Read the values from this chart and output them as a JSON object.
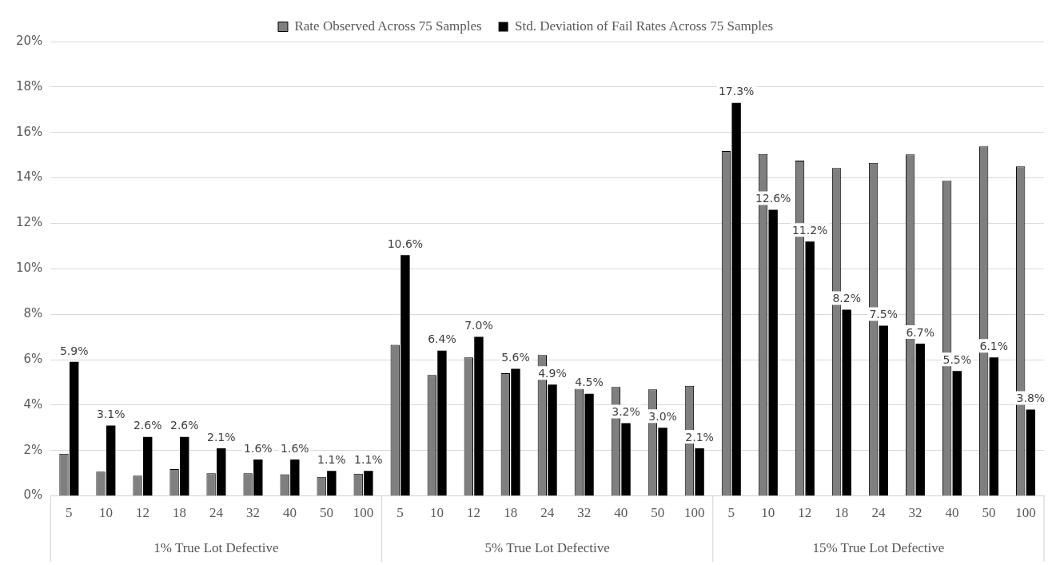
{
  "chart_data": {
    "type": "bar",
    "categories": [
      "5",
      "10",
      "12",
      "18",
      "24",
      "32",
      "40",
      "50",
      "100",
      "5",
      "10",
      "12",
      "18",
      "24",
      "32",
      "40",
      "50",
      "100",
      "5",
      "10",
      "12",
      "18",
      "24",
      "32",
      "40",
      "50",
      "100"
    ],
    "series": [
      {
        "name": "Rate Observed Across 75 Samples",
        "color": "#7f7f7f",
        "values": [
          1.86,
          1.07,
          0.89,
          1.18,
          1.0,
          1.0,
          0.95,
          0.84,
          0.98,
          6.65,
          5.32,
          6.1,
          5.4,
          6.2,
          4.73,
          4.8,
          4.69,
          4.85,
          15.18,
          15.05,
          14.76,
          14.43,
          14.66,
          15.03,
          13.87,
          15.38,
          14.5
        ]
      },
      {
        "name": "Std. Deviation of Fail Rates Across 75 Samples",
        "color": "#000000",
        "values": [
          5.9,
          3.1,
          2.6,
          2.6,
          2.1,
          1.6,
          1.6,
          1.1,
          1.1,
          10.6,
          6.4,
          7.0,
          5.6,
          4.9,
          4.5,
          3.2,
          3.0,
          2.1,
          17.3,
          12.6,
          11.2,
          8.2,
          7.5,
          6.7,
          5.5,
          6.1,
          3.8
        ],
        "value_labels": [
          "5.9%",
          "3.1%",
          "2.6%",
          "2.6%",
          "2.1%",
          "1.6%",
          "1.6%",
          "1.1%",
          "1.1%",
          "10.6%",
          "6.4%",
          "7.0%",
          "5.6%",
          "4.9%",
          "4.5%",
          "3.2%",
          "3.0%",
          "2.1%",
          "17.3%",
          "12.6%",
          "11.2%",
          "8.2%",
          "7.5%",
          "6.7%",
          "5.5%",
          "6.1%",
          "3.8%"
        ]
      }
    ],
    "annotations": [
      "1% True Lot Defective",
      "5% True Lot Defective",
      "15% True Lot Defective"
    ],
    "ylim": [
      0,
      20
    ],
    "yticks": [
      {
        "value": 0,
        "label": "0%"
      },
      {
        "value": 2,
        "label": "2%"
      },
      {
        "value": 4,
        "label": "4%"
      },
      {
        "value": 6,
        "label": "6%"
      },
      {
        "value": 8,
        "label": "8%"
      },
      {
        "value": 10,
        "label": "10%"
      },
      {
        "value": 12,
        "label": "12%"
      },
      {
        "value": 14,
        "label": "14%"
      },
      {
        "value": 16,
        "label": "16%"
      },
      {
        "value": 18,
        "label": "18%"
      },
      {
        "value": 20,
        "label": "20%"
      }
    ],
    "grid": "y",
    "legend": "top"
  }
}
